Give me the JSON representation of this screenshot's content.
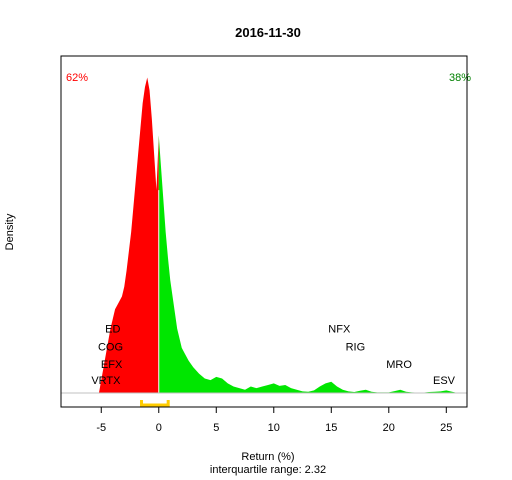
{
  "chart_data": {
    "type": "area",
    "title": "2016-11-30",
    "xlabel": "Return (%)",
    "ylabel": "Density",
    "subtitle": "interquartile range: 2.32",
    "xlim": [
      -8.5,
      26.8
    ],
    "x_ticks": [
      -5,
      0,
      5,
      10,
      15,
      20,
      25
    ],
    "ylim": [
      0,
      1
    ],
    "negative_share_label": "62%",
    "positive_share_label": "38%",
    "colors": {
      "negative": "#ff0000",
      "positive": "#00e600",
      "iqr": "#ffcc00",
      "baseline": "#c0c0c0"
    },
    "iqr": [
      -1.5,
      0.82
    ],
    "density": {
      "x": [
        -5.2,
        -5.0,
        -4.8,
        -4.5,
        -4.2,
        -4.0,
        -3.8,
        -3.5,
        -3.2,
        -3.0,
        -2.8,
        -2.6,
        -2.4,
        -2.2,
        -2.0,
        -1.8,
        -1.6,
        -1.4,
        -1.2,
        -1.0,
        -0.8,
        -0.6,
        -0.4,
        -0.2,
        0.0,
        0.2,
        0.4,
        0.6,
        0.8,
        1.0,
        1.2,
        1.4,
        1.6,
        1.8,
        2.0,
        2.3,
        2.6,
        3.0,
        3.5,
        4.0,
        4.5,
        5.0,
        5.5,
        6.0,
        6.5,
        7.0,
        7.5,
        8.0,
        8.5,
        9.0,
        9.5,
        10.0,
        10.5,
        11.0,
        11.5,
        12.0,
        12.5,
        13.0,
        13.5,
        14.0,
        14.5,
        15.0,
        15.5,
        16.0,
        16.5,
        17.0,
        17.5,
        18.0,
        18.5,
        19.0,
        19.5,
        20.0,
        20.5,
        21.0,
        21.5,
        22.0,
        22.5,
        23.0,
        23.5,
        24.0,
        24.5,
        25.0,
        25.5,
        26.0
      ],
      "y": [
        0.0,
        0.04,
        0.08,
        0.14,
        0.2,
        0.23,
        0.26,
        0.28,
        0.3,
        0.33,
        0.38,
        0.44,
        0.5,
        0.58,
        0.66,
        0.74,
        0.82,
        0.9,
        0.95,
        0.98,
        0.94,
        0.85,
        0.74,
        0.63,
        0.8,
        0.7,
        0.6,
        0.5,
        0.42,
        0.35,
        0.3,
        0.25,
        0.2,
        0.17,
        0.14,
        0.12,
        0.1,
        0.08,
        0.06,
        0.045,
        0.04,
        0.05,
        0.045,
        0.03,
        0.02,
        0.015,
        0.01,
        0.02,
        0.015,
        0.02,
        0.025,
        0.03,
        0.022,
        0.025,
        0.015,
        0.01,
        0.005,
        0.004,
        0.008,
        0.02,
        0.03,
        0.035,
        0.02,
        0.01,
        0.005,
        0.003,
        0.007,
        0.01,
        0.004,
        0.002,
        0.002,
        0.002,
        0.006,
        0.01,
        0.004,
        0.002,
        0.001,
        0.001,
        0.003,
        0.004,
        0.005,
        0.008,
        0.004,
        0.0
      ]
    },
    "annotations": [
      {
        "text": "ED",
        "x": -4.0,
        "y": 0.2
      },
      {
        "text": "COG",
        "x": -4.2,
        "y": 0.145
      },
      {
        "text": "EFX",
        "x": -4.1,
        "y": 0.09
      },
      {
        "text": "VRTX",
        "x": -4.6,
        "y": 0.04
      },
      {
        "text": "NFX",
        "x": 15.7,
        "y": 0.2
      },
      {
        "text": "RIG",
        "x": 17.1,
        "y": 0.145
      },
      {
        "text": "MRO",
        "x": 20.9,
        "y": 0.09
      },
      {
        "text": "ESV",
        "x": 24.8,
        "y": 0.04
      }
    ]
  }
}
